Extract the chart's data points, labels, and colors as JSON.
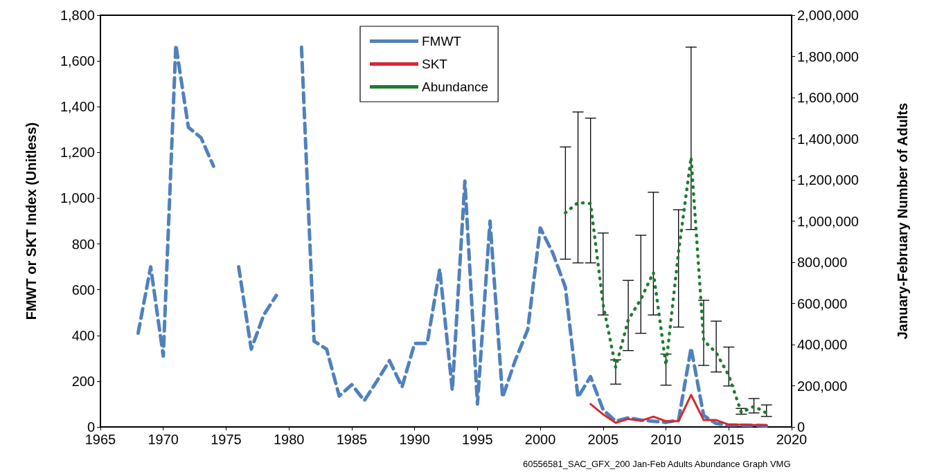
{
  "chart_data": {
    "type": "line",
    "xlabel": null,
    "ylabel": "FMWT or SKT Index (Unitless)",
    "y2label": "January-February Number of Adults",
    "annotations": [
      "60556581_SAC_GFX_200 Jan-Feb Adults Abundance Graph VMG"
    ],
    "x": [
      1968,
      1969,
      1970,
      1971,
      1972,
      1973,
      1974,
      1975,
      1976,
      1977,
      1978,
      1979,
      1980,
      1981,
      1982,
      1983,
      1984,
      1985,
      1986,
      1987,
      1988,
      1989,
      1990,
      1991,
      1992,
      1993,
      1994,
      1995,
      1996,
      1997,
      1998,
      1999,
      2000,
      2001,
      2002,
      2003,
      2004,
      2005,
      2006,
      2007,
      2008,
      2009,
      2010,
      2011,
      2012,
      2013,
      2014,
      2015,
      2016,
      2017,
      2018
    ],
    "series": [
      {
        "name": "FMWT",
        "color": "#4f81bd",
        "line_style": "dashed",
        "values": [
          410,
          700,
          310,
          1670,
          1310,
          1265,
          1140,
          null,
          700,
          340,
          490,
          575,
          null,
          1660,
          375,
          340,
          135,
          185,
          115,
          200,
          290,
          175,
          365,
          365,
          690,
          160,
          1075,
          100,
          900,
          130,
          290,
          425,
          870,
          760,
          610,
          130,
          220,
          75,
          25,
          40,
          30,
          25,
          20,
          30,
          345,
          50,
          15,
          8,
          8,
          7,
          5
        ]
      },
      {
        "name": "SKT",
        "color": "#d7282f",
        "line_style": "solid",
        "x": [
          2004,
          2005,
          2006,
          2007,
          2008,
          2009,
          2010,
          2011,
          2012,
          2013,
          2014,
          2015,
          2016,
          2017,
          2018
        ],
        "values": [
          100,
          55,
          18,
          35,
          27,
          45,
          25,
          25,
          140,
          30,
          30,
          10,
          10,
          8,
          8
        ]
      },
      {
        "name": "Abundance",
        "color": "#1e7b2e",
        "line_style": "dotted",
        "axis": "y2",
        "x": [
          2002,
          2003,
          2004,
          2005,
          2006,
          2007,
          2008,
          2009,
          2010,
          2011,
          2012,
          2013,
          2014,
          2015,
          2016,
          2017,
          2018
        ],
        "values": [
          1040000,
          1090000,
          1085000,
          595000,
          290000,
          520000,
          620000,
          750000,
          300000,
          850000,
          1310000,
          420000,
          360000,
          250000,
          70000,
          100000,
          68000
        ],
        "errors": [
          [
            815000,
            1360000
          ],
          [
            797000,
            1530000
          ],
          [
            797000,
            1500000
          ],
          [
            544000,
            942000
          ],
          [
            208000,
            326000
          ],
          [
            371000,
            712000
          ],
          [
            455000,
            931000
          ],
          [
            544000,
            1140000
          ],
          [
            203000,
            354000
          ],
          [
            485000,
            1055000
          ],
          [
            959000,
            1845000
          ],
          [
            299000,
            615000
          ],
          [
            267000,
            514000
          ],
          [
            199000,
            388000
          ],
          [
            62000,
            90000
          ],
          [
            68000,
            138000
          ],
          [
            51000,
            107000
          ]
        ]
      }
    ],
    "marker": "none",
    "xlim": [
      1965,
      2020
    ],
    "xticks": [
      1965,
      1970,
      1975,
      1980,
      1985,
      1990,
      1995,
      2000,
      2005,
      2010,
      2015,
      2020
    ],
    "ylim": [
      0,
      1800
    ],
    "yticks": [
      0,
      200,
      400,
      600,
      800,
      {
        "value": 1000,
        "label": "1,000"
      },
      {
        "value": 1200,
        "label": "1,200"
      },
      {
        "value": 1400,
        "label": "1,400"
      },
      {
        "value": 1600,
        "label": "1,600"
      },
      {
        "value": 1800,
        "label": "1,800"
      }
    ],
    "y2lim": [
      0,
      2000000
    ],
    "y2ticks": [
      0,
      {
        "value": 200000,
        "label": "200,000"
      },
      {
        "value": 400000,
        "label": "400,000"
      },
      {
        "value": 600000,
        "label": "600,000"
      },
      {
        "value": 800000,
        "label": "800,000"
      },
      {
        "value": 1000000,
        "label": "1,000,000"
      },
      {
        "value": 1200000,
        "label": "1,200,000"
      },
      {
        "value": 1400000,
        "label": "1,400,000"
      },
      {
        "value": 1600000,
        "label": "1,600,000"
      },
      {
        "value": 1800000,
        "label": "1,800,000"
      },
      {
        "value": 2000000,
        "label": "2,000,000"
      }
    ],
    "grid": false,
    "legend": "top"
  }
}
